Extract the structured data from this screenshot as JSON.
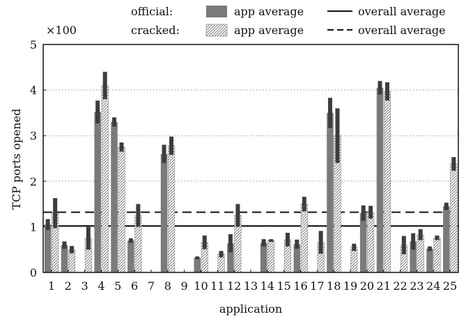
{
  "chart_data": {
    "type": "bar",
    "xlabel": "application",
    "ylabel": "TCP ports opened",
    "y_multiplier": "×100",
    "ylim": [
      0,
      5
    ],
    "yticks": [
      0,
      1,
      2,
      3,
      4,
      5
    ],
    "grid": "horizontal dotted",
    "legend_position": "top",
    "legend": {
      "row_labels": [
        "official:",
        "cracked:"
      ],
      "entries": [
        {
          "row": "official:",
          "label": "app average",
          "swatch": "solid-gray"
        },
        {
          "row": "official:",
          "label": "overall average",
          "swatch": "solid-line"
        },
        {
          "row": "cracked:",
          "label": "app average",
          "swatch": "hatched"
        },
        {
          "row": "cracked:",
          "label": "overall average",
          "swatch": "dashed-line"
        }
      ]
    },
    "categories": [
      "1",
      "2",
      "3",
      "4",
      "5",
      "6",
      "7",
      "8",
      "9",
      "10",
      "11",
      "12",
      "13",
      "14",
      "15",
      "16",
      "17",
      "18",
      "19",
      "20",
      "21",
      "22",
      "23",
      "24",
      "25"
    ],
    "series": [
      {
        "name": "official",
        "values": [
          1.05,
          0.6,
          0,
          3.52,
          3.3,
          0.7,
          0,
          2.6,
          0,
          0.32,
          0,
          0.64,
          0,
          0.65,
          0,
          0.62,
          0,
          3.5,
          0,
          1.3,
          4.05,
          0,
          0.68,
          0.52,
          1.45
        ],
        "errors": [
          0.12,
          0.08,
          0,
          0.25,
          0.1,
          0.05,
          0,
          0.2,
          0,
          0.03,
          0,
          0.2,
          0,
          0.08,
          0,
          0.1,
          0,
          0.33,
          0,
          0.17,
          0.15,
          0,
          0.18,
          0.05,
          0.08
        ],
        "color": "#7a7a7a",
        "pattern": "solid"
      },
      {
        "name": "cracked",
        "values": [
          1.3,
          0.5,
          0.75,
          4.1,
          2.75,
          1.25,
          0,
          2.78,
          0,
          0.66,
          0.4,
          1.25,
          0,
          0.7,
          0.72,
          1.5,
          0.66,
          3.0,
          0.55,
          1.32,
          3.97,
          0.6,
          0.83,
          0.76,
          2.38
        ],
        "errors": [
          0.33,
          0.08,
          0.25,
          0.3,
          0.1,
          0.25,
          0,
          0.2,
          0,
          0.15,
          0.07,
          0.25,
          0,
          0.03,
          0.15,
          0.16,
          0.25,
          0.6,
          0.08,
          0.14,
          0.2,
          0.2,
          0.12,
          0.05,
          0.15
        ],
        "color": "#ffffff",
        "pattern": "hatched"
      }
    ],
    "reference_lines": [
      {
        "series": "official",
        "label": "overall average",
        "value": 1.02,
        "style": "solid"
      },
      {
        "series": "cracked",
        "label": "overall average",
        "value": 1.32,
        "style": "dashed"
      }
    ]
  }
}
